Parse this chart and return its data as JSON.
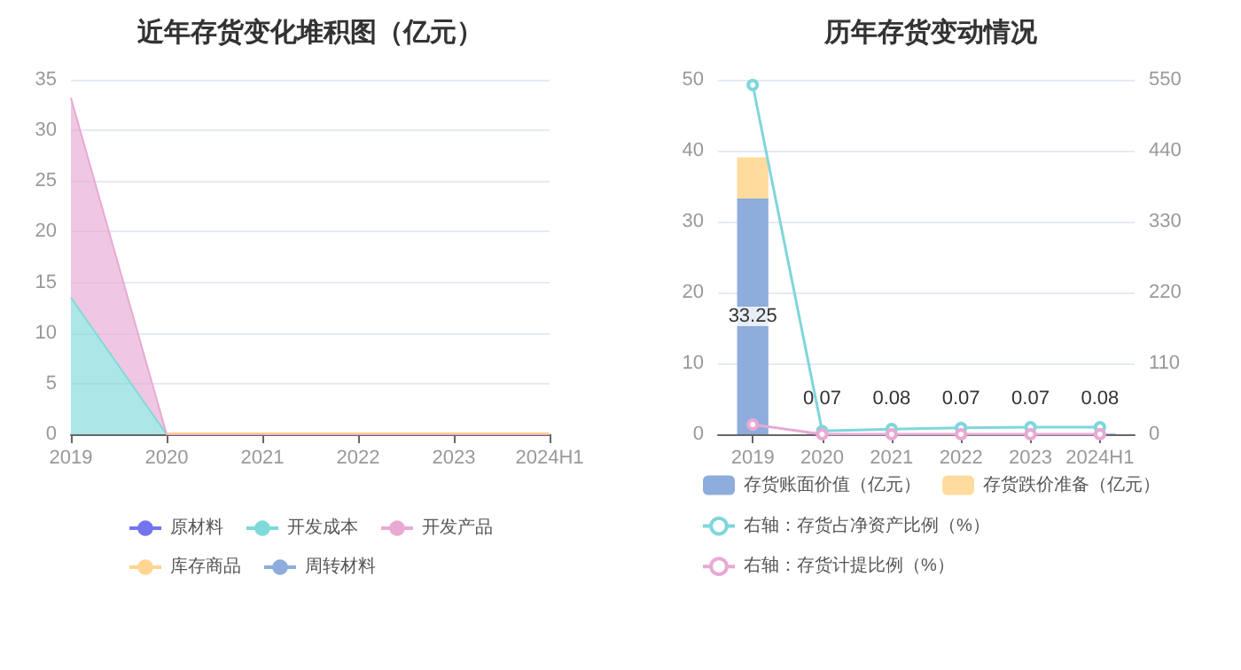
{
  "chart_data": [
    {
      "type": "area",
      "title": "近年存货变化堆积图（亿元）",
      "categories": [
        "2019",
        "2020",
        "2021",
        "2022",
        "2023",
        "2024H1"
      ],
      "stacked": true,
      "ylim": [
        0,
        35
      ],
      "yticks": [
        0,
        5,
        10,
        15,
        20,
        25,
        30,
        35
      ],
      "grid": "y",
      "legend": "bottom",
      "marker": "none",
      "series": [
        {
          "name": "原材料",
          "color": "#7474f0",
          "values": [
            null,
            null,
            null,
            null,
            null,
            null
          ]
        },
        {
          "name": "开发成本",
          "color": "#7fd9d9",
          "values": [
            13.5,
            0,
            0,
            0,
            0,
            0
          ]
        },
        {
          "name": "开发产品",
          "color": "#e8a9d4",
          "values": [
            19.7,
            0,
            0,
            0,
            0,
            0
          ]
        },
        {
          "name": "库存商品",
          "color": "#ffd591",
          "values": [
            null,
            0.1,
            0.1,
            0.1,
            0.1,
            0.1
          ]
        },
        {
          "name": "周转材料",
          "color": "#8eacdc",
          "values": [
            null,
            null,
            null,
            null,
            null,
            null
          ]
        }
      ]
    },
    {
      "type": "bar",
      "title": "历年存货变动情况",
      "categories": [
        "2019",
        "2020",
        "2021",
        "2022",
        "2023",
        "2024H1"
      ],
      "stacked": true,
      "ylim": [
        0,
        50
      ],
      "yticks": [
        0,
        10,
        20,
        30,
        40,
        50
      ],
      "y2lim": [
        0,
        550
      ],
      "y2ticks": [
        0,
        110,
        220,
        330,
        440,
        550
      ],
      "grid": "y",
      "legend": "bottom",
      "marker": "circle",
      "series": [
        {
          "name": "存货账面价值（亿元）",
          "color": "#8eacdc",
          "values": [
            33.25,
            0.07,
            0.08,
            0.07,
            0.07,
            0.08
          ],
          "value_labels": [
            "33.25",
            "0.07",
            "0.08",
            "0.07",
            "0.07",
            "0.08"
          ]
        },
        {
          "name": "存货跌价准备（亿元）",
          "color": "#ffdc9e",
          "values": [
            5.8,
            0,
            0,
            0,
            0,
            0
          ]
        },
        {
          "name": "右轴：存货占净资产比例（%）",
          "type": "line",
          "axis": "y2",
          "color": "#7fd6dc",
          "values": [
            542,
            5,
            8,
            10,
            11,
            11
          ]
        },
        {
          "name": "右轴：存货计提比例（%）",
          "type": "line",
          "axis": "y2",
          "color": "#e8a9d4",
          "values": [
            15,
            0,
            0,
            0,
            0,
            0
          ]
        }
      ]
    }
  ]
}
